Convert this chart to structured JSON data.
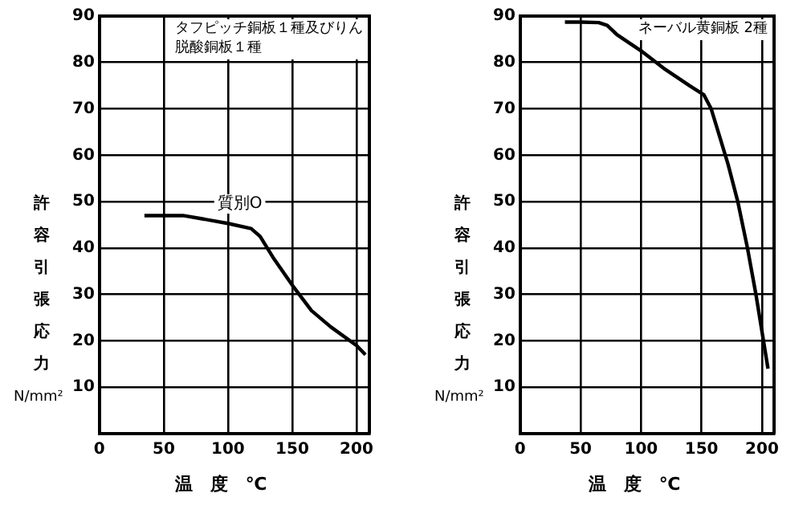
{
  "chart_data": [
    {
      "type": "line",
      "title": "タフピッチ銅板１種及びりん脱酸銅板１種",
      "xlabel": "温　度　℃",
      "ylabel": "許容引張応力 N/mm²",
      "series": [
        {
          "color": "#000000",
          "x": [
            35,
            50,
            65,
            80,
            100,
            118,
            125,
            135,
            150,
            165,
            180,
            200,
            207
          ],
          "values": [
            47,
            47,
            47,
            46.3,
            45.3,
            44.2,
            42.5,
            38,
            32,
            26.5,
            23,
            19,
            17
          ]
        }
      ],
      "annotations": [
        "質別O"
      ],
      "xlim": [
        0,
        210
      ],
      "xticks": [
        0,
        50,
        100,
        150,
        200
      ],
      "ylim": [
        0,
        90
      ],
      "yticks": [
        10,
        20,
        30,
        40,
        50,
        60,
        70,
        80,
        90
      ],
      "grid": true
    },
    {
      "type": "line",
      "title": "ネーバル黄銅板 2種",
      "xlabel": "温　度　℃",
      "ylabel": "許容引張応力 N/mm²",
      "series": [
        {
          "color": "#000000",
          "x": [
            37,
            50,
            65,
            72,
            80,
            100,
            120,
            140,
            152,
            158,
            165,
            172,
            180,
            188,
            195,
            200,
            205
          ],
          "values": [
            88.7,
            88.7,
            88.6,
            88,
            86,
            82.5,
            78.5,
            75,
            73,
            70,
            64,
            58,
            50,
            40,
            30,
            22,
            14
          ]
        }
      ],
      "xlim": [
        0,
        210
      ],
      "xticks": [
        0,
        50,
        100,
        150,
        200
      ],
      "ylim": [
        0,
        90
      ],
      "yticks": [
        10,
        20,
        30,
        40,
        50,
        60,
        70,
        80,
        90
      ],
      "grid": true
    }
  ]
}
